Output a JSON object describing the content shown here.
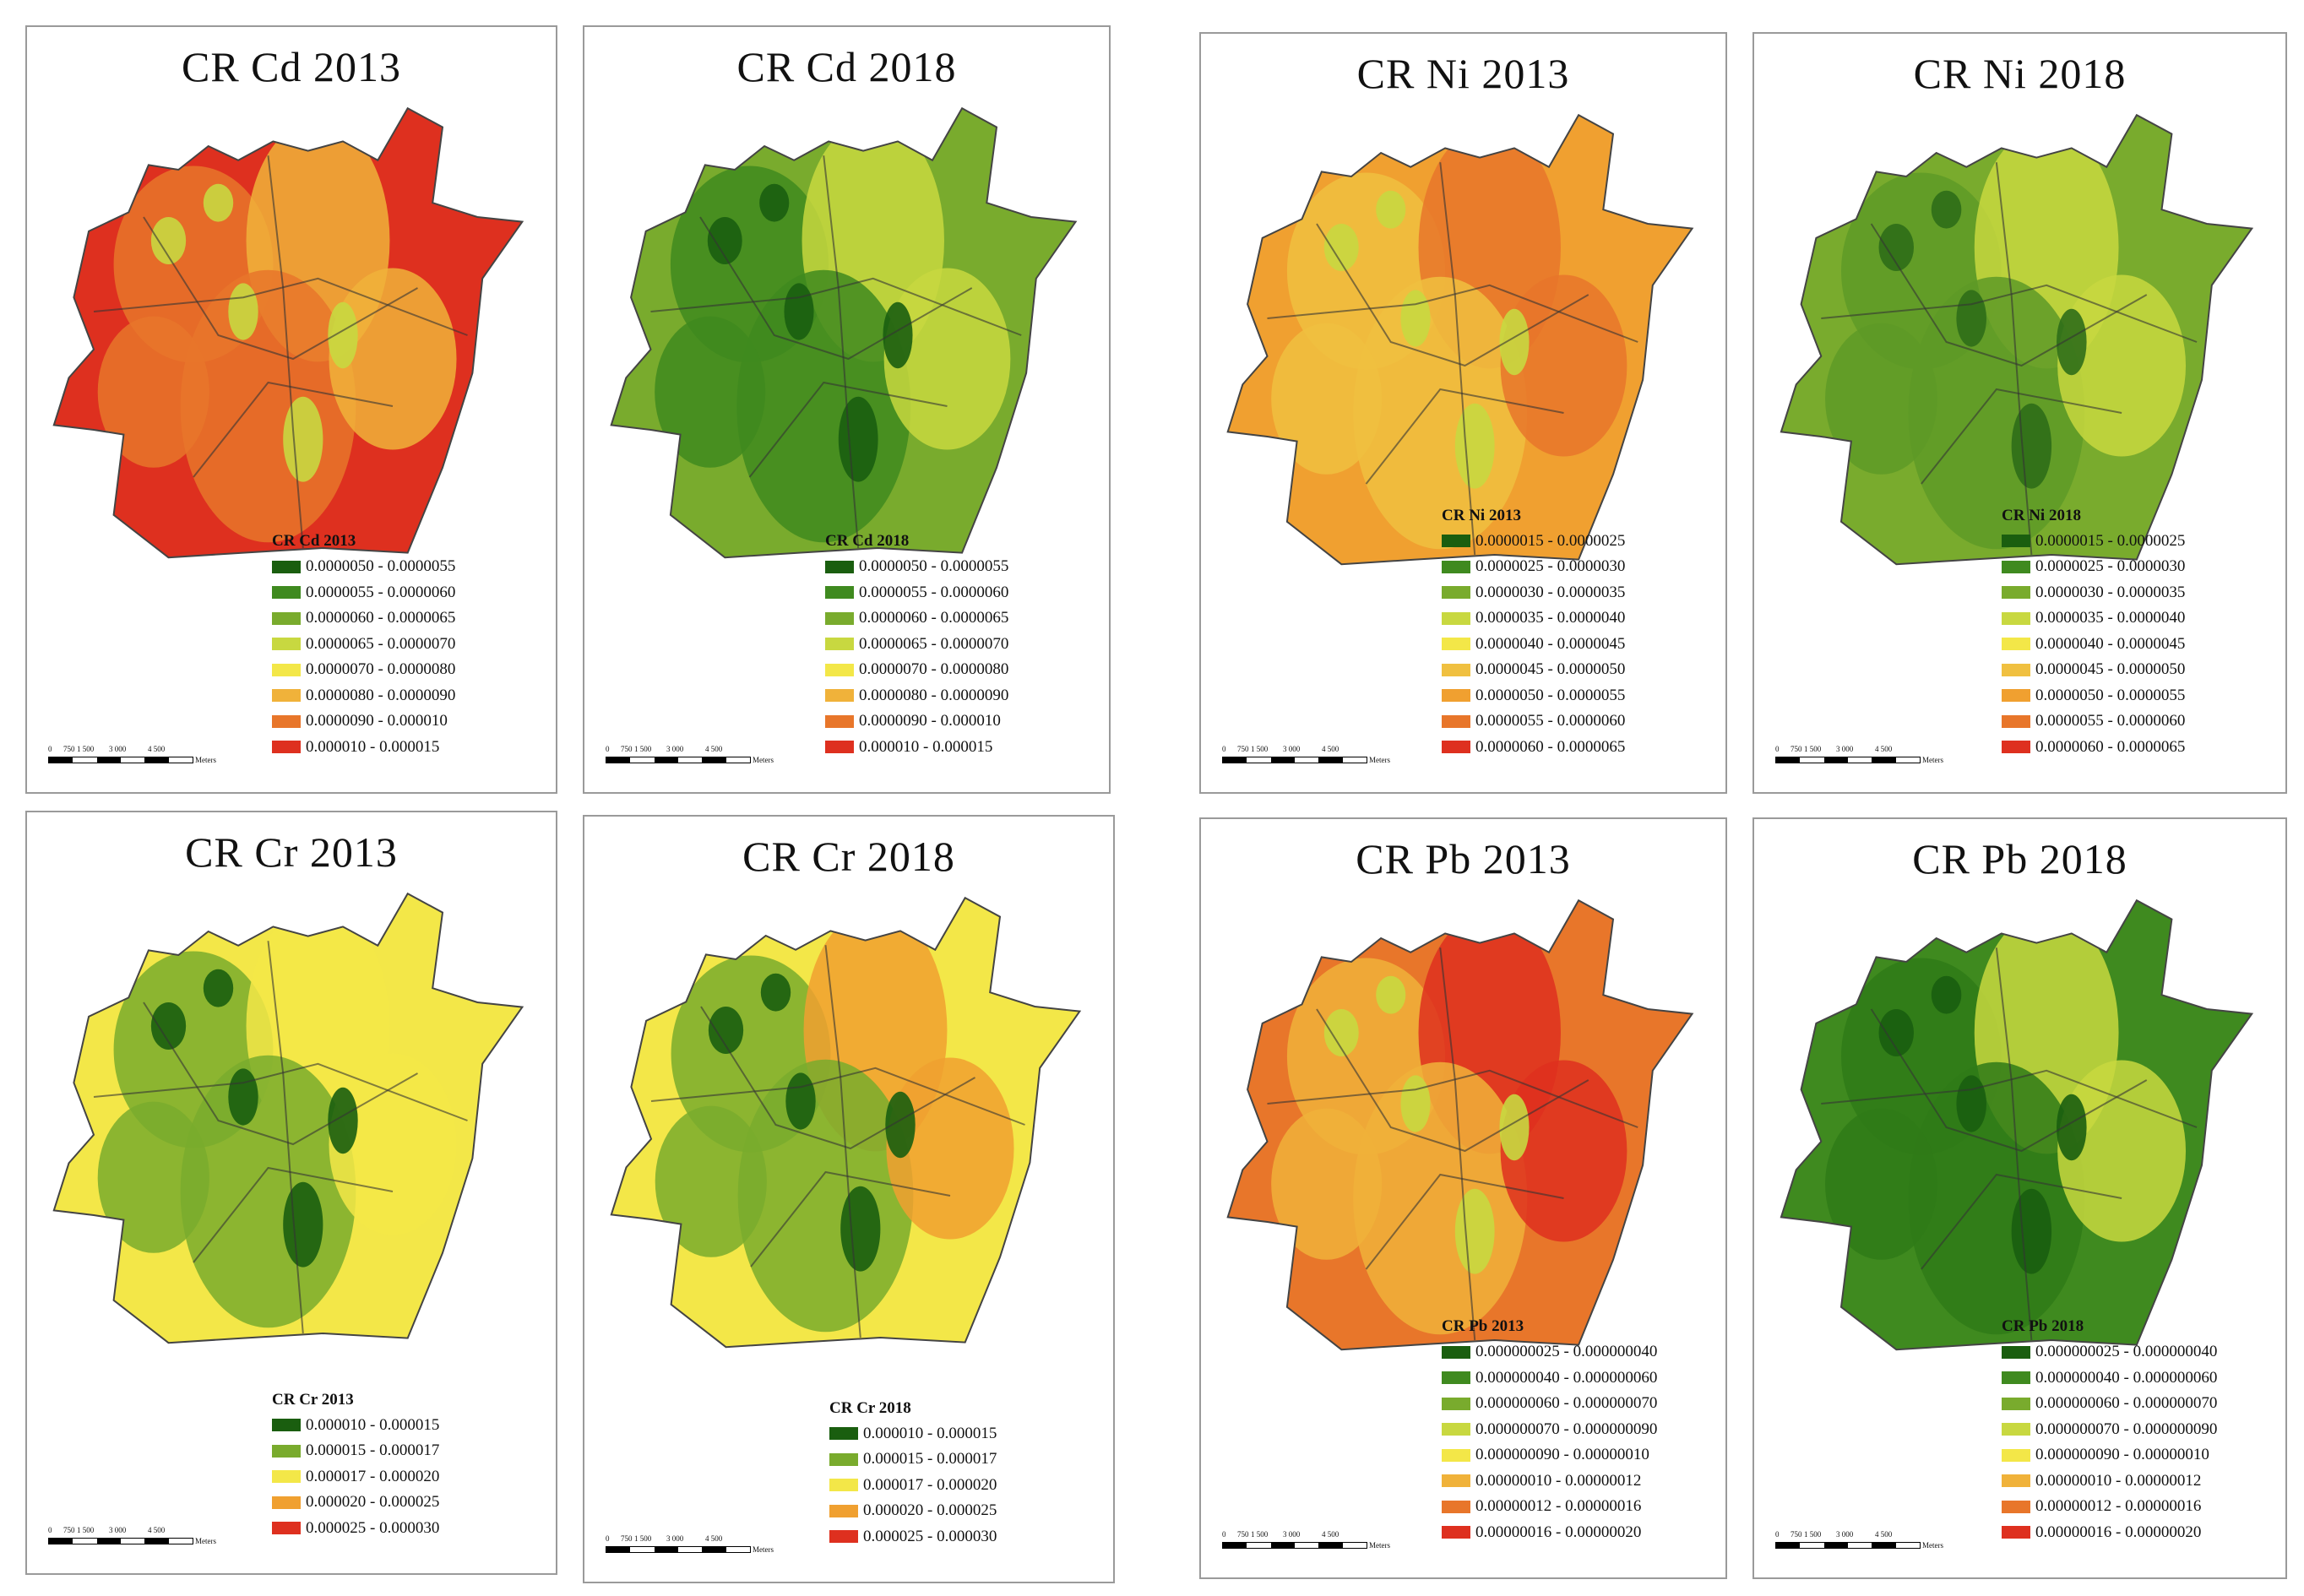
{
  "figure": {
    "panels": [
      {
        "title": "CR Cd 2013",
        "legend_title": "CR Cd 2013",
        "colors": [
          "#1a5e0f",
          "#3f8a1f",
          "#79ab2d",
          "#c8d840",
          "#f3e748",
          "#f0b23a",
          "#e8762a",
          "#de301f"
        ],
        "classes": [
          "0.0000050 - 0.0000055",
          "0.0000055 - 0.0000060",
          "0.0000060 - 0.0000065",
          "0.0000065 - 0.0000070",
          "0.0000070 - 0.0000080",
          "0.0000080 - 0.0000090",
          "0.0000090 - 0.000010",
          "0.000010 - 0.000015"
        ],
        "fill_base": "#de301f",
        "fill_mid": "#e8762a",
        "fill_hi": "#f0b23a",
        "fill_spot": "#c8d840"
      },
      {
        "title": "CR Cd 2018",
        "legend_title": "CR Cd 2018",
        "colors": [
          "#1a5e0f",
          "#3f8a1f",
          "#79ab2d",
          "#c8d840",
          "#f3e748",
          "#f0b23a",
          "#e8762a",
          "#de301f"
        ],
        "classes": [
          "0.0000050 - 0.0000055",
          "0.0000055 - 0.0000060",
          "0.0000060 - 0.0000065",
          "0.0000065 - 0.0000070",
          "0.0000070 - 0.0000080",
          "0.0000080 - 0.0000090",
          "0.0000090 - 0.000010",
          "0.000010 - 0.000015"
        ],
        "fill_base": "#79ab2d",
        "fill_mid": "#3f8a1f",
        "fill_hi": "#c8d840",
        "fill_spot": "#1a5e0f"
      },
      {
        "title": "CR Ni 2013",
        "legend_title": "CR Ni 2013",
        "colors": [
          "#1a5e0f",
          "#3f8a1f",
          "#79ab2d",
          "#c8d840",
          "#f3e748",
          "#f0c040",
          "#f0a030",
          "#e8762a",
          "#de301f"
        ],
        "classes": [
          "0.0000015 - 0.0000025",
          "0.0000025 - 0.0000030",
          "0.0000030 - 0.0000035",
          "0.0000035 - 0.0000040",
          "0.0000040 - 0.0000045",
          "0.0000045 - 0.0000050",
          "0.0000050 - 0.0000055",
          "0.0000055 - 0.0000060",
          "0.0000060 - 0.0000065"
        ],
        "fill_base": "#f0a030",
        "fill_mid": "#f0c040",
        "fill_hi": "#e8762a",
        "fill_spot": "#c8d840"
      },
      {
        "title": "CR Ni 2018",
        "legend_title": "CR Ni 2018",
        "colors": [
          "#1a5e0f",
          "#3f8a1f",
          "#79ab2d",
          "#c8d840",
          "#f3e748",
          "#f0c040",
          "#f0a030",
          "#e8762a",
          "#de301f"
        ],
        "classes": [
          "0.0000015 - 0.0000025",
          "0.0000025 - 0.0000030",
          "0.0000030 - 0.0000035",
          "0.0000035 - 0.0000040",
          "0.0000040 - 0.0000045",
          "0.0000045 - 0.0000050",
          "0.0000050 - 0.0000055",
          "0.0000055 - 0.0000060",
          "0.0000060 - 0.0000065"
        ],
        "fill_base": "#79ab2d",
        "fill_mid": "#5e9a27",
        "fill_hi": "#c8d840",
        "fill_spot": "#2f6e18"
      },
      {
        "title": "CR Cr 2013",
        "legend_title": "CR Cr 2013",
        "colors": [
          "#1a5e0f",
          "#79ab2d",
          "#f3e748",
          "#f0a030",
          "#de301f"
        ],
        "classes": [
          "0.000010 - 0.000015",
          "0.000015 - 0.000017",
          "0.000017 - 0.000020",
          "0.000020 - 0.000025",
          "0.000025 - 0.000030"
        ],
        "fill_base": "#f3e748",
        "fill_mid": "#79ab2d",
        "fill_hi": "#f3e748",
        "fill_spot": "#1a5e0f"
      },
      {
        "title": "CR Cr 2018",
        "legend_title": "CR Cr 2018",
        "colors": [
          "#1a5e0f",
          "#79ab2d",
          "#f3e748",
          "#f0a030",
          "#de301f"
        ],
        "classes": [
          "0.000010 - 0.000015",
          "0.000015 - 0.000017",
          "0.000017 - 0.000020",
          "0.000020 - 0.000025",
          "0.000025 - 0.000030"
        ],
        "fill_base": "#f3e748",
        "fill_mid": "#79ab2d",
        "fill_hi": "#f0a030",
        "fill_spot": "#1a5e0f"
      },
      {
        "title": "CR Pb 2013",
        "legend_title": "CR Pb 2013",
        "colors": [
          "#1a5e0f",
          "#3f8a1f",
          "#79ab2d",
          "#c8d840",
          "#f3e748",
          "#f0b23a",
          "#e8762a",
          "#de301f"
        ],
        "classes": [
          "0.000000025 - 0.000000040",
          "0.000000040 - 0.000000060",
          "0.000000060 - 0.000000070",
          "0.000000070 - 0.000000090",
          "0.000000090 - 0.00000010",
          "0.00000010 - 0.00000012",
          "0.00000012 - 0.00000016",
          "0.00000016 - 0.00000020"
        ],
        "fill_base": "#e8762a",
        "fill_mid": "#f0b23a",
        "fill_hi": "#de301f",
        "fill_spot": "#c8d840"
      },
      {
        "title": "CR Pb 2018",
        "legend_title": "CR Pb 2018",
        "colors": [
          "#1a5e0f",
          "#3f8a1f",
          "#79ab2d",
          "#c8d840",
          "#f3e748",
          "#f0b23a",
          "#e8762a",
          "#de301f"
        ],
        "classes": [
          "0.000000025 - 0.000000040",
          "0.000000040 - 0.000000060",
          "0.000000060 - 0.000000070",
          "0.000000070 - 0.000000090",
          "0.000000090 - 0.00000010",
          "0.00000010 - 0.00000012",
          "0.00000012 - 0.00000016",
          "0.00000016 - 0.00000020"
        ],
        "fill_base": "#3f8a1f",
        "fill_mid": "#2f7a18",
        "fill_hi": "#c8d840",
        "fill_spot": "#1a5e0f"
      }
    ],
    "scalebar": {
      "ticks": [
        "0",
        "750",
        "1 500",
        "3 000",
        "4 500"
      ],
      "unit": "Meters"
    }
  }
}
